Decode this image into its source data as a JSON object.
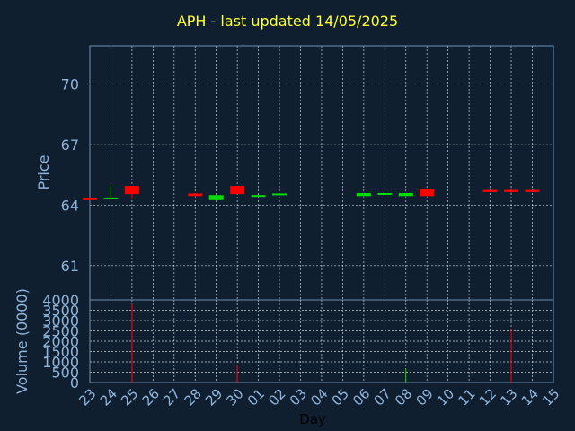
{
  "chart_data": {
    "title": "APH - last updated 14/05/2025",
    "type": "candlestick",
    "colors": {
      "background": "#0f1f30",
      "plot_border": "#6f8fb0",
      "grid": "#ffffff",
      "axis_text": "#8fb5dc",
      "title": "#ffff33",
      "up": "#00dd00",
      "down": "#ff0000"
    },
    "price_panel": {
      "ylabel": "Price",
      "ylim": [
        59.3,
        71.9
      ],
      "yticks": [
        61,
        64,
        67,
        70
      ]
    },
    "volume_panel": {
      "ylabel": "Volume (0000)",
      "ylim": [
        0,
        4000
      ],
      "yticks": [
        0,
        500,
        1000,
        1500,
        2000,
        2500,
        3000,
        3500,
        4000
      ]
    },
    "xlabel": "Day",
    "x_tick_labels": [
      "23",
      "24",
      "25",
      "26",
      "27",
      "28",
      "29",
      "30",
      "01",
      "02",
      "03",
      "04",
      "05",
      "06",
      "07",
      "08",
      "09",
      "10",
      "11",
      "12",
      "13",
      "14",
      "15"
    ],
    "candles": [
      {
        "day": "23",
        "open": 64.35,
        "close": 64.25,
        "high": 64.35,
        "low": 64.25,
        "volume": 0
      },
      {
        "day": "24",
        "open": 64.32,
        "close": 64.38,
        "high": 64.95,
        "low": 64.32,
        "volume": 0
      },
      {
        "day": "25",
        "open": 64.95,
        "close": 64.55,
        "high": 64.95,
        "low": 64.3,
        "volume": 3800
      },
      {
        "day": "28",
        "open": 64.58,
        "close": 64.45,
        "high": 64.58,
        "low": 64.45,
        "volume": 0
      },
      {
        "day": "29",
        "open": 64.25,
        "close": 64.5,
        "high": 64.5,
        "low": 64.2,
        "volume": 0
      },
      {
        "day": "30",
        "open": 64.95,
        "close": 64.55,
        "high": 64.95,
        "low": 64.55,
        "volume": 850
      },
      {
        "day": "01",
        "open": 64.42,
        "close": 64.5,
        "high": 64.5,
        "low": 64.4,
        "volume": 0
      },
      {
        "day": "02",
        "open": 64.5,
        "close": 64.58,
        "high": 64.58,
        "low": 64.5,
        "volume": 0
      },
      {
        "day": "06",
        "open": 64.45,
        "close": 64.6,
        "high": 64.6,
        "low": 64.45,
        "volume": 0
      },
      {
        "day": "07",
        "open": 64.52,
        "close": 64.6,
        "high": 64.6,
        "low": 64.52,
        "volume": 0
      },
      {
        "day": "08",
        "open": 64.45,
        "close": 64.6,
        "high": 64.6,
        "low": 64.45,
        "volume": 650
      },
      {
        "day": "09",
        "open": 64.78,
        "close": 64.45,
        "high": 64.78,
        "low": 64.45,
        "volume": 0
      },
      {
        "day": "12",
        "open": 64.75,
        "close": 64.65,
        "high": 64.75,
        "low": 64.65,
        "volume": 0
      },
      {
        "day": "13",
        "open": 64.75,
        "close": 64.65,
        "high": 64.75,
        "low": 64.6,
        "volume": 2600
      },
      {
        "day": "14",
        "open": 64.75,
        "close": 64.65,
        "high": 64.75,
        "low": 64.65,
        "volume": 0
      }
    ]
  }
}
